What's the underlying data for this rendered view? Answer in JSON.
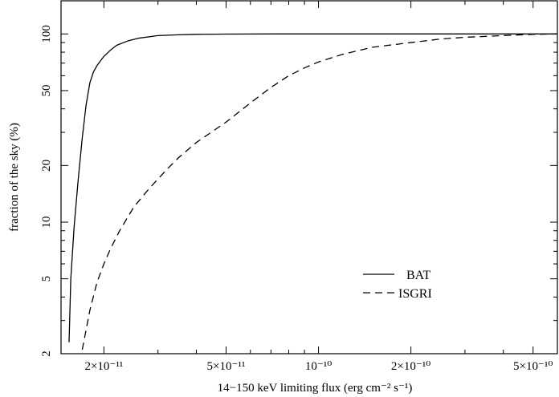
{
  "chart_data": {
    "type": "line",
    "title": "",
    "xlabel": "14−150 keV limiting flux (erg cm⁻² s⁻¹)",
    "ylabel": "fraction of the sky (%)",
    "x_scale": "log",
    "y_scale": "log",
    "xlim": [
      1.45e-11,
      6e-10
    ],
    "ylim": [
      2,
      150
    ],
    "x_ticks": [
      {
        "value": 2e-11,
        "label": "2×10⁻¹¹"
      },
      {
        "value": 5e-11,
        "label": "5×10⁻¹¹"
      },
      {
        "value": 1e-10,
        "label": "10⁻¹⁰"
      },
      {
        "value": 2e-10,
        "label": "2×10⁻¹⁰"
      },
      {
        "value": 5e-10,
        "label": "5×10⁻¹⁰"
      }
    ],
    "y_ticks": [
      {
        "value": 2,
        "label": "2"
      },
      {
        "value": 5,
        "label": "5"
      },
      {
        "value": 10,
        "label": "10"
      },
      {
        "value": 20,
        "label": "20"
      },
      {
        "value": 50,
        "label": "50"
      },
      {
        "value": 100,
        "label": "100"
      }
    ],
    "grid": false,
    "legend_position": "lower-right",
    "series": [
      {
        "name": "BAT",
        "line_style": "solid",
        "color": "#000000",
        "x": [
          1.54e-11,
          1.56e-11,
          1.6e-11,
          1.65e-11,
          1.7e-11,
          1.75e-11,
          1.8e-11,
          1.85e-11,
          1.9e-11,
          1.95e-11,
          2e-11,
          2.1e-11,
          2.2e-11,
          2.4e-11,
          2.6e-11,
          3e-11,
          3.5e-11,
          4e-11,
          5e-11,
          7e-11,
          1e-10,
          2e-10,
          6e-10
        ],
        "y": [
          2.3,
          5,
          9.5,
          17,
          28,
          42,
          55,
          63,
          68,
          72,
          76,
          82,
          87,
          92,
          95,
          98,
          99,
          99.5,
          99.8,
          100,
          100,
          100,
          100
        ]
      },
      {
        "name": "ISGRI",
        "line_style": "dashed",
        "color": "#000000",
        "x": [
          1.7e-11,
          1.8e-11,
          1.9e-11,
          2e-11,
          2.1e-11,
          2.25e-11,
          2.5e-11,
          2.8e-11,
          3.2e-11,
          3.5e-11,
          4e-11,
          5e-11,
          6e-11,
          7e-11,
          8e-11,
          9e-11,
          1e-10,
          1.2e-10,
          1.5e-10,
          2e-10,
          2.5e-10,
          3e-10,
          4e-10,
          5e-10,
          6e-10
        ],
        "y": [
          2.1,
          3.4,
          4.8,
          6,
          7.2,
          9,
          12,
          15,
          19,
          22,
          26.5,
          34,
          43,
          52,
          60,
          66,
          71,
          78,
          85,
          90,
          94,
          96,
          98,
          99.5,
          100
        ]
      }
    ]
  }
}
